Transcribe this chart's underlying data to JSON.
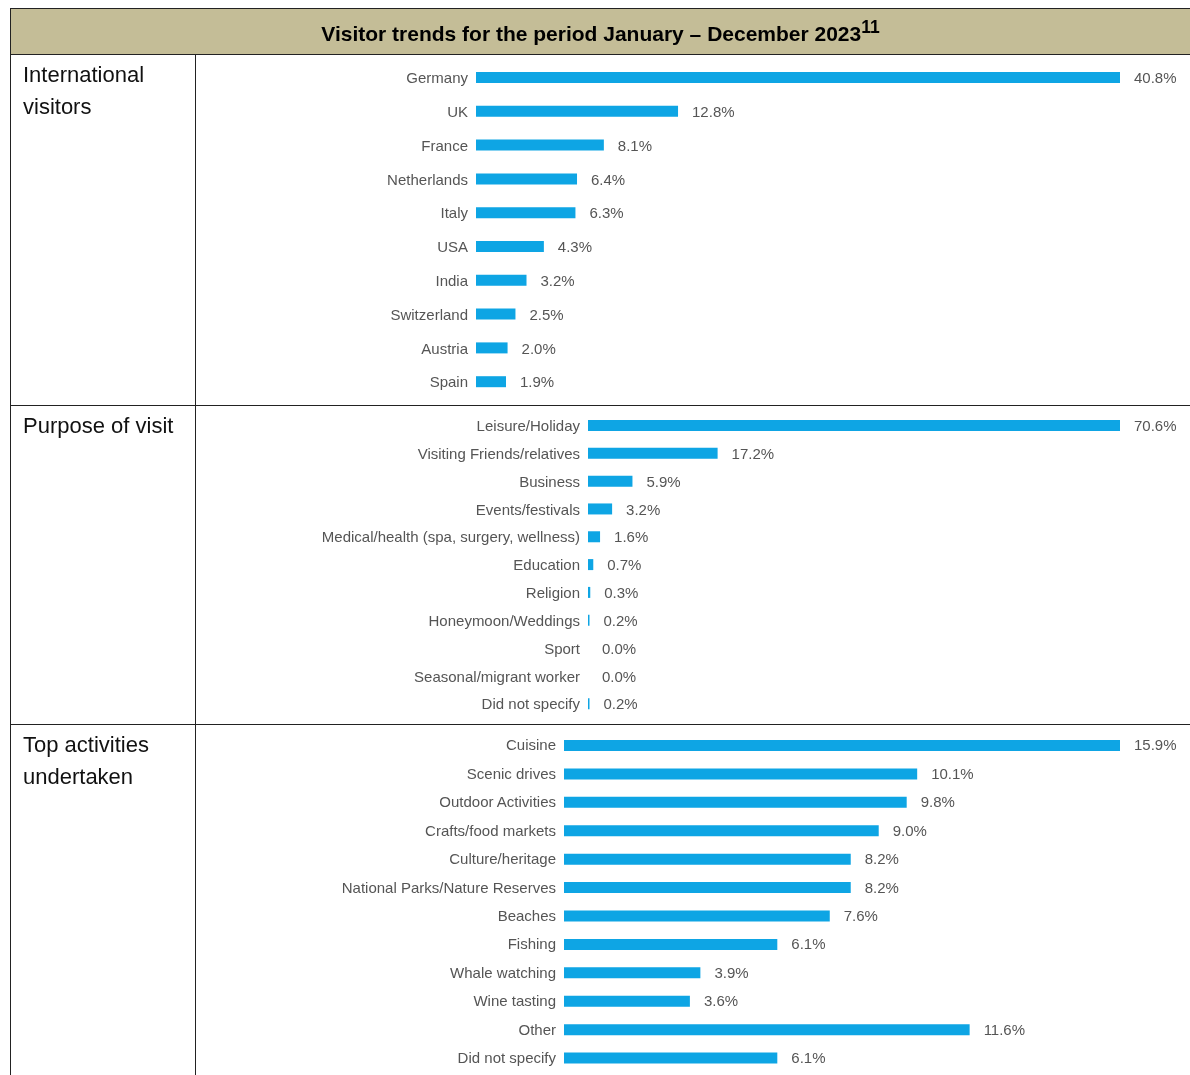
{
  "chart_data": [
    {
      "type": "bar",
      "orientation": "horizontal",
      "title": "Visitor trends for the period January – December 2023$^{11}$",
      "ylabel": "International visitors",
      "categories": [
        "Germany",
        "UK",
        "France",
        "Netherlands",
        "Italy",
        "USA",
        "India",
        "Switzerland",
        "Austria",
        "Spain"
      ],
      "values": [
        40.8,
        12.8,
        8.1,
        6.4,
        6.3,
        4.3,
        3.2,
        2.5,
        2.0,
        1.9
      ],
      "value_labels": [
        "40.8%",
        "12.8%",
        "8.1%",
        "6.4%",
        "6.3%",
        "4.3%",
        "3.2%",
        "2.5%",
        "2.0%",
        "1.9%"
      ],
      "color": "#0ea5e4"
    },
    {
      "type": "bar",
      "orientation": "horizontal",
      "ylabel": "Purpose of visit",
      "categories": [
        "Leisure/Holiday",
        "Visiting Friends/relatives",
        "Business",
        "Events/festivals",
        "Medical/health (spa, surgery, wellness)",
        "Education",
        "Religion",
        "Honeymoon/Weddings",
        "Sport",
        "Seasonal/migrant worker",
        "Did not specify"
      ],
      "values": [
        70.6,
        17.2,
        5.9,
        3.2,
        1.6,
        0.7,
        0.3,
        0.2,
        0.0,
        0.0,
        0.2
      ],
      "value_labels": [
        "70.6%",
        "17.2%",
        "5.9%",
        "3.2%",
        "1.6%",
        "0.7%",
        "0.3%",
        "0.2%",
        "0.0%",
        "0.0%",
        "0.2%"
      ],
      "color": "#0ea5e4"
    },
    {
      "type": "bar",
      "orientation": "horizontal",
      "ylabel": "Top activities undertaken",
      "categories": [
        "Cuisine",
        "Scenic drives",
        "Outdoor Activities",
        "Crafts/food markets",
        "Culture/heritage",
        "National Parks/Nature Reserves",
        "Beaches",
        "Fishing",
        "Whale watching",
        "Wine tasting",
        "Other",
        "Did not specify"
      ],
      "values": [
        15.9,
        10.1,
        9.8,
        9.0,
        8.2,
        8.2,
        7.6,
        6.1,
        3.9,
        3.6,
        11.6,
        6.1
      ],
      "value_labels": [
        "15.9%",
        "10.1%",
        "9.8%",
        "9.0%",
        "8.2%",
        "8.2%",
        "7.6%",
        "6.1%",
        "3.9%",
        "3.6%",
        "11.6%",
        "6.1%"
      ],
      "color": "#0ea5e4"
    }
  ]
}
